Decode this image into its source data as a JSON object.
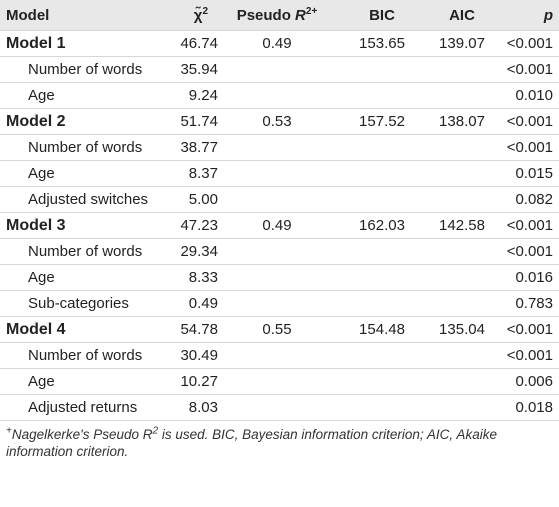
{
  "table": {
    "header": [
      {
        "text": "Model"
      },
      {
        "text": "χ̃",
        "sup": "2"
      },
      {
        "text": "Pseudo ",
        "var": "R",
        "sup": "2+"
      },
      {
        "text": "BIC"
      },
      {
        "text": "AIC"
      },
      {
        "var": "p"
      }
    ],
    "models": [
      {
        "name": "Model 1",
        "chi": "46.74",
        "pseudo": "0.49",
        "bic": "153.65",
        "aic": "139.07",
        "p": "<0.001",
        "predictors": [
          {
            "name": "Number of words",
            "chi": "35.94",
            "p": "<0.001"
          },
          {
            "name": "Age",
            "chi": "9.24",
            "p": "0.010"
          }
        ]
      },
      {
        "name": "Model 2",
        "chi": "51.74",
        "pseudo": "0.53",
        "bic": "157.52",
        "aic": "138.07",
        "p": "<0.001",
        "predictors": [
          {
            "name": "Number of words",
            "chi": "38.77",
            "p": "<0.001"
          },
          {
            "name": "Age",
            "chi": "8.37",
            "p": "0.015"
          },
          {
            "name": "Adjusted switches",
            "chi": "5.00",
            "p": "0.082"
          }
        ]
      },
      {
        "name": "Model 3",
        "chi": "47.23",
        "pseudo": "0.49",
        "bic": "162.03",
        "aic": "142.58",
        "p": "<0.001",
        "predictors": [
          {
            "name": "Number of words",
            "chi": "29.34",
            "p": "<0.001"
          },
          {
            "name": "Age",
            "chi": "8.33",
            "p": "0.016"
          },
          {
            "name": "Sub-categories",
            "chi": "0.49",
            "p": "0.783"
          }
        ]
      },
      {
        "name": "Model 4",
        "chi": "54.78",
        "pseudo": "0.55",
        "bic": "154.48",
        "aic": "135.04",
        "p": "<0.001",
        "predictors": [
          {
            "name": "Number of words",
            "chi": "30.49",
            "p": "<0.001"
          },
          {
            "name": "Age",
            "chi": "10.27",
            "p": "0.006"
          },
          {
            "name": "Adjusted returns",
            "chi": "8.03",
            "p": "0.018"
          }
        ]
      }
    ]
  },
  "footnote": {
    "mark": "+",
    "text": "Nagelkerke's Pseudo ",
    "var": "R",
    "sup": "2",
    "rest": " is used. BIC, Bayesian information criterion; AIC, Akaike information criterion."
  }
}
